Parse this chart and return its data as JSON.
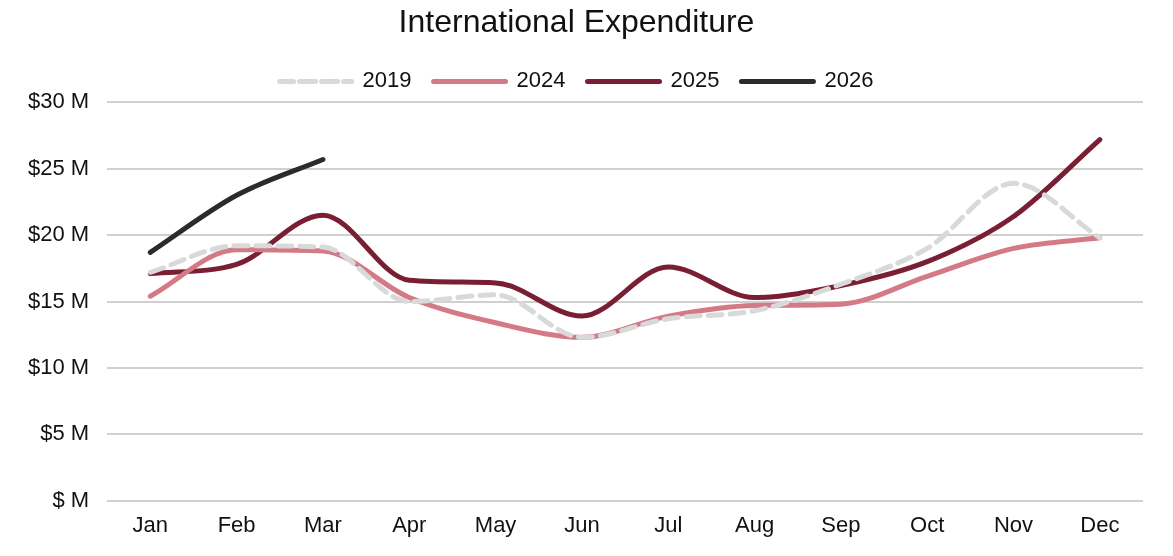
{
  "chart_data": {
    "type": "line",
    "title": "International Expenditure",
    "categories": [
      "Jan",
      "Feb",
      "Mar",
      "Apr",
      "May",
      "Jun",
      "Jul",
      "Aug",
      "Sep",
      "Oct",
      "Nov",
      "Dec"
    ],
    "series": [
      {
        "name": "2019",
        "color": "#d9d9d9",
        "line_style": "dashed",
        "values": [
          17.2,
          19.2,
          19.1,
          15.0,
          15.5,
          12.3,
          13.7,
          14.3,
          16.3,
          19.0,
          23.9,
          19.8
        ]
      },
      {
        "name": "2024",
        "color": "#d47a87",
        "values": [
          15.4,
          18.9,
          18.8,
          15.3,
          13.4,
          12.3,
          13.9,
          14.7,
          14.8,
          16.9,
          19.0,
          19.8
        ]
      },
      {
        "name": "2025",
        "color": "#7a1f33",
        "values": [
          17.1,
          17.8,
          21.5,
          16.6,
          16.4,
          13.9,
          17.6,
          15.3,
          16.2,
          18.0,
          21.4,
          27.2
        ]
      },
      {
        "name": "2026",
        "color": "#2b2b2b",
        "values": [
          18.7,
          23.0,
          25.7,
          null,
          null,
          null,
          null,
          null,
          null,
          null,
          null,
          null
        ]
      }
    ],
    "ylim": [
      0,
      30
    ],
    "yticks": [
      {
        "value": 0,
        "label": "$ M"
      },
      {
        "value": 5,
        "label": "$5 M"
      },
      {
        "value": 10,
        "label": "$10 M"
      },
      {
        "value": 15,
        "label": "$15 M"
      },
      {
        "value": 20,
        "label": "$20 M"
      },
      {
        "value": 25,
        "label": "$25 M"
      },
      {
        "value": 30,
        "label": "$30 M"
      }
    ],
    "grid": "y",
    "legend": "top",
    "marker": "none",
    "line_style": "solid"
  }
}
